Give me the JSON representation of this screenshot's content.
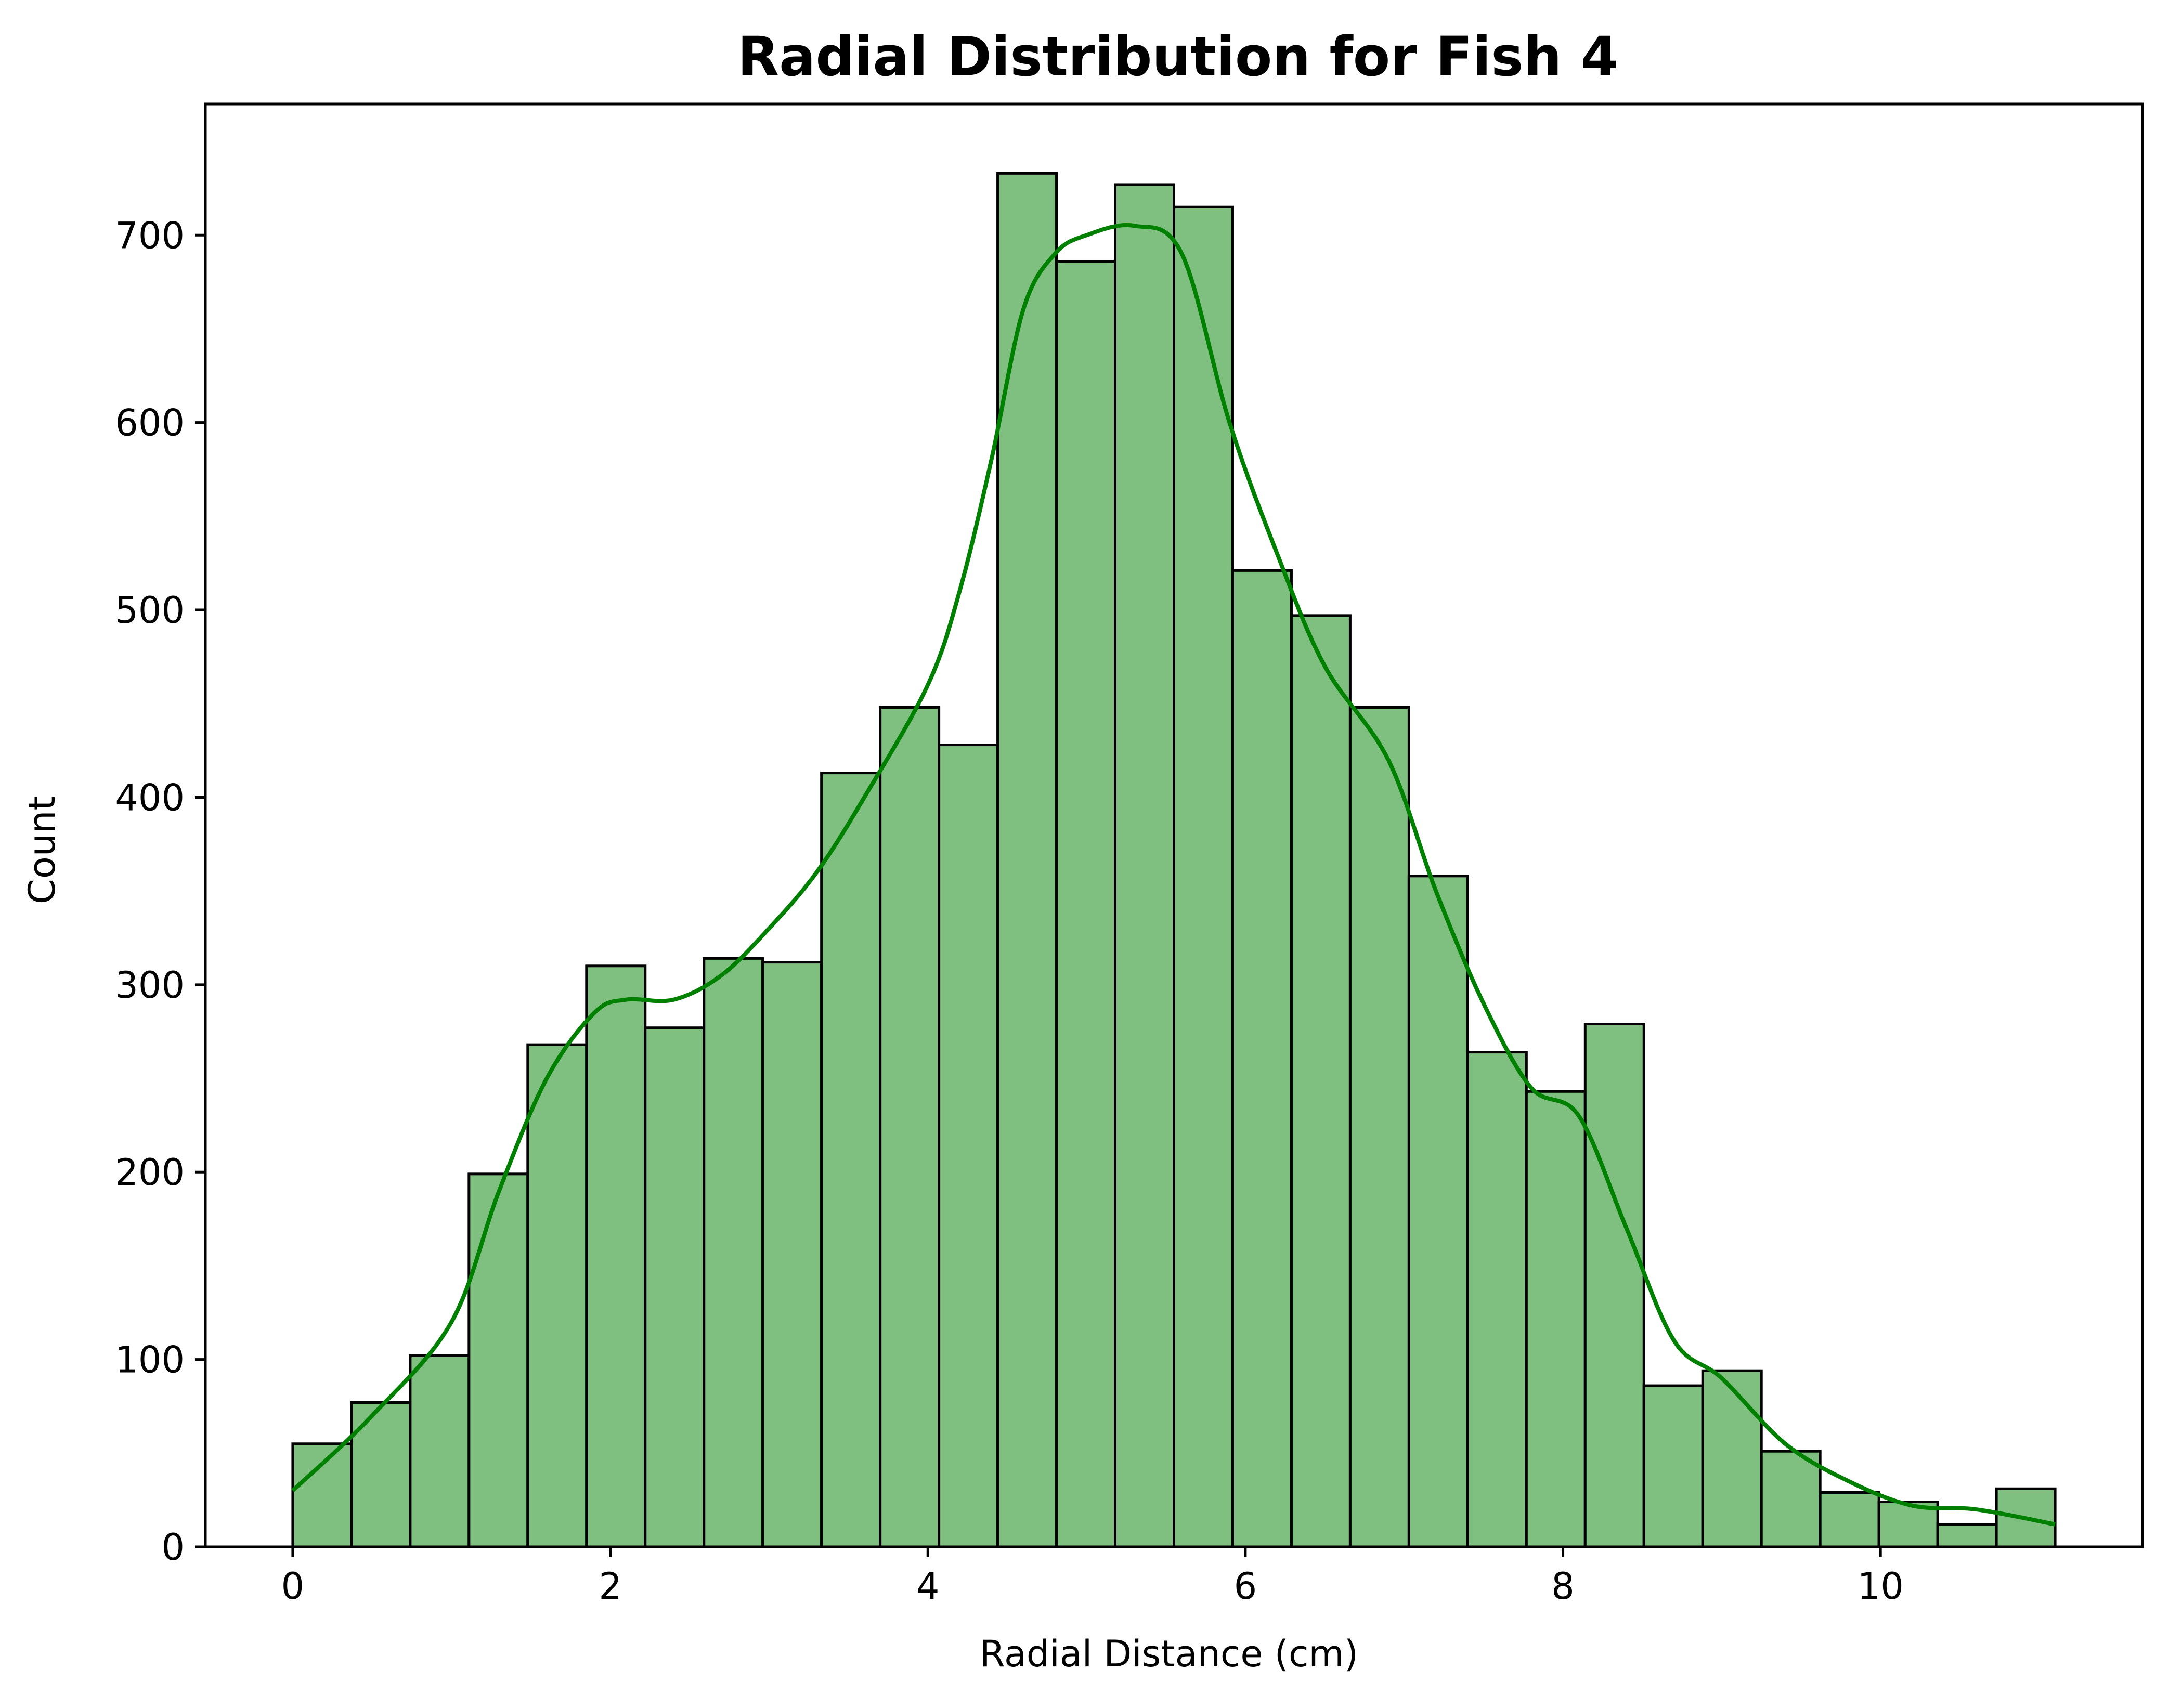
{
  "chart_data": {
    "type": "bar",
    "title": "Radial Distribution for Fish 4",
    "xlabel": "Radial Distance (cm)",
    "ylabel": "Count",
    "xlim": [
      -0.55,
      11.65
    ],
    "ylim": [
      0,
      770
    ],
    "bin_start": 0,
    "bin_width": 0.37,
    "values": [
      55,
      77,
      102,
      199,
      268,
      310,
      277,
      314,
      312,
      413,
      448,
      428,
      733,
      686,
      727,
      715,
      521,
      497,
      448,
      358,
      264,
      243,
      279,
      86,
      94,
      51,
      29,
      24,
      12,
      31
    ],
    "x_ticks": [
      0,
      2,
      4,
      6,
      8,
      10
    ],
    "x_tick_labels": [
      "0",
      "2",
      "4",
      "6",
      "8",
      "10"
    ],
    "y_ticks": [
      0,
      100,
      200,
      300,
      400,
      500,
      600,
      700
    ],
    "y_tick_labels": [
      "0",
      "100",
      "200",
      "300",
      "400",
      "500",
      "600",
      "700"
    ],
    "series": [
      {
        "kind": "histogram",
        "color": "#7fbf7f",
        "edge_color": "#000000"
      },
      {
        "kind": "kde",
        "color": "#008000",
        "x": [
          0,
          0.5,
          1.0,
          1.3,
          1.6,
          1.9,
          2.1,
          2.4,
          2.7,
          3.0,
          3.3,
          3.6,
          4.0,
          4.2,
          4.4,
          4.6,
          4.8,
          5.0,
          5.3,
          5.6,
          5.9,
          6.2,
          6.5,
          6.9,
          7.2,
          7.5,
          7.8,
          8.1,
          8.4,
          8.7,
          9.0,
          9.4,
          9.8,
          10.2,
          10.6,
          11.1
        ],
        "y": [
          30,
          70,
          120,
          190,
          250,
          285,
          292,
          292,
          305,
          330,
          360,
          400,
          460,
          510,
          580,
          660,
          690,
          700,
          705,
          690,
          600,
          530,
          470,
          420,
          350,
          290,
          245,
          230,
          170,
          110,
          90,
          55,
          35,
          22,
          20,
          12
        ]
      }
    ]
  }
}
